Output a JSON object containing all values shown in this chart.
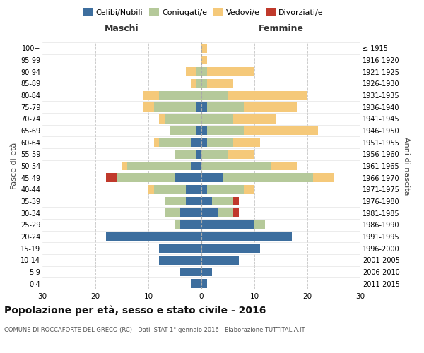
{
  "age_groups": [
    "0-4",
    "5-9",
    "10-14",
    "15-19",
    "20-24",
    "25-29",
    "30-34",
    "35-39",
    "40-44",
    "45-49",
    "50-54",
    "55-59",
    "60-64",
    "65-69",
    "70-74",
    "75-79",
    "80-84",
    "85-89",
    "90-94",
    "95-99",
    "100+"
  ],
  "birth_years": [
    "2011-2015",
    "2006-2010",
    "2001-2005",
    "1996-2000",
    "1991-1995",
    "1986-1990",
    "1981-1985",
    "1976-1980",
    "1971-1975",
    "1966-1970",
    "1961-1965",
    "1956-1960",
    "1951-1955",
    "1946-1950",
    "1941-1945",
    "1936-1940",
    "1931-1935",
    "1926-1930",
    "1921-1925",
    "1916-1920",
    "≤ 1915"
  ],
  "male": {
    "celibi": [
      2,
      4,
      8,
      8,
      18,
      4,
      4,
      3,
      3,
      5,
      2,
      1,
      2,
      1,
      0,
      1,
      0,
      0,
      0,
      0,
      0
    ],
    "coniugati": [
      0,
      0,
      0,
      0,
      0,
      1,
      3,
      4,
      6,
      11,
      12,
      4,
      6,
      5,
      7,
      8,
      8,
      1,
      1,
      0,
      0
    ],
    "vedovi": [
      0,
      0,
      0,
      0,
      0,
      0,
      0,
      0,
      1,
      0,
      1,
      0,
      1,
      0,
      1,
      2,
      3,
      1,
      2,
      0,
      0
    ],
    "divorziati": [
      0,
      0,
      0,
      0,
      0,
      0,
      0,
      0,
      0,
      2,
      0,
      0,
      0,
      0,
      0,
      0,
      0,
      0,
      0,
      0,
      0
    ]
  },
  "female": {
    "nubili": [
      1,
      2,
      7,
      11,
      17,
      10,
      3,
      2,
      1,
      4,
      0,
      0,
      1,
      1,
      0,
      1,
      0,
      0,
      0,
      0,
      0
    ],
    "coniugate": [
      0,
      0,
      0,
      0,
      0,
      2,
      3,
      4,
      7,
      17,
      13,
      5,
      5,
      7,
      6,
      7,
      5,
      1,
      1,
      0,
      0
    ],
    "vedove": [
      0,
      0,
      0,
      0,
      0,
      0,
      0,
      0,
      2,
      4,
      5,
      5,
      5,
      14,
      8,
      10,
      15,
      5,
      9,
      1,
      1
    ],
    "divorziate": [
      0,
      0,
      0,
      0,
      0,
      0,
      1,
      1,
      0,
      0,
      0,
      0,
      0,
      0,
      0,
      0,
      0,
      0,
      0,
      0,
      0
    ]
  },
  "colors": {
    "celibi_nubili": "#3d6e9e",
    "coniugati": "#b5c99a",
    "vedovi": "#f5c97a",
    "divorziati": "#c0392b"
  },
  "xlim": 30,
  "title": "Popolazione per età, sesso e stato civile - 2016",
  "subtitle": "COMUNE DI ROCCAFORTE DEL GRECO (RC) - Dati ISTAT 1° gennaio 2016 - Elaborazione TUTTITALIA.IT",
  "ylabel_left": "Fasce di età",
  "ylabel_right": "Anni di nascita",
  "xlabel_left": "Maschi",
  "xlabel_right": "Femmine"
}
